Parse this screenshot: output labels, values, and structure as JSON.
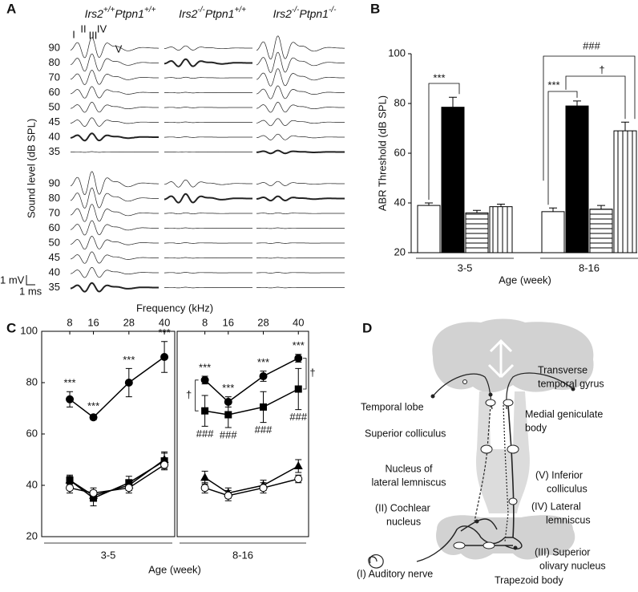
{
  "panel_labels": [
    "A",
    "B",
    "C",
    "D"
  ],
  "panel_a": {
    "headers": [
      [
        "Irs2",
        "+/+",
        "Ptpn1",
        "+/+"
      ],
      [
        "Irs2",
        "-/-",
        "Ptpn1",
        "+/+"
      ],
      [
        "Irs2",
        "-/-",
        "Ptpn1",
        "-/-"
      ]
    ],
    "y_label": "Sound level  (dB SPL)",
    "levels": [
      90,
      80,
      70,
      60,
      50,
      45,
      40,
      35
    ],
    "waves": [
      "I",
      "II",
      "III",
      "IV",
      "V"
    ],
    "scale_v": "1 mV",
    "scale_t": "1 ms"
  },
  "chart_data": [
    {
      "type": "bar",
      "ylabel": "ABR Threshold (dB SPL)",
      "xlabel": "Age (week)",
      "categories": [
        "3-5",
        "8-16"
      ],
      "series": [
        {
          "color": "#ffffff",
          "pattern": "none",
          "values": [
            39,
            36.5
          ],
          "errors": [
            1,
            1.5
          ]
        },
        {
          "color": "#000000",
          "pattern": "none",
          "values": [
            78.5,
            79
          ],
          "errors": [
            4,
            2
          ]
        },
        {
          "color": "#ffffff",
          "pattern": "horizontal",
          "values": [
            36,
            37.5
          ],
          "errors": [
            1,
            1.5
          ]
        },
        {
          "color": "#ffffff",
          "pattern": "vertical",
          "values": [
            38.5,
            69
          ],
          "errors": [
            1,
            3.5
          ]
        }
      ],
      "ylim": [
        20,
        100
      ],
      "yticks": [
        20,
        40,
        60,
        80,
        100
      ],
      "annotations": [
        "***",
        "***",
        "†",
        "###"
      ]
    },
    {
      "type": "line",
      "xlabel_top": "Frequency (kHz)",
      "xlabel": "Age (week)",
      "group": "3-5",
      "x": [
        8,
        16,
        28,
        40
      ],
      "xlim": [
        -1.5,
        43.5
      ],
      "xticks": [
        8,
        16,
        28,
        40
      ],
      "ylim": [
        20,
        100
      ],
      "yticks": [
        20,
        40,
        60,
        80,
        100
      ],
      "series": [
        {
          "marker": "circle-filled",
          "color": "#000000",
          "values": [
            73.5,
            66.5,
            80,
            90
          ],
          "errors": [
            3,
            1,
            5.5,
            6
          ]
        },
        {
          "marker": "square",
          "color": "#000000",
          "values": [
            42,
            35,
            41,
            49.5
          ],
          "errors": [
            2,
            3,
            2.5,
            3
          ]
        },
        {
          "marker": "triangle",
          "color": "#000000",
          "values": [
            42,
            36,
            40,
            50
          ],
          "errors": [
            1.5,
            2,
            2,
            3
          ]
        },
        {
          "marker": "circle-open",
          "color": "#000000",
          "values": [
            39,
            37,
            39,
            48
          ],
          "errors": [
            2,
            2,
            2,
            2
          ]
        }
      ],
      "annotations": [
        "***",
        "***",
        "***",
        "***"
      ]
    },
    {
      "type": "line",
      "group": "8-16",
      "x": [
        8,
        16,
        28,
        40
      ],
      "xlim": [
        -1.5,
        43.5
      ],
      "xticks": [
        8,
        16,
        28,
        40
      ],
      "ylim": [
        20,
        100
      ],
      "series": [
        {
          "marker": "circle-filled",
          "color": "#000000",
          "values": [
            81,
            72.5,
            82.5,
            89.5
          ],
          "errors": [
            1.5,
            2,
            2,
            1.5
          ]
        },
        {
          "marker": "square",
          "color": "#000000",
          "values": [
            69,
            67.5,
            70.5,
            77.5
          ],
          "errors": [
            6,
            5,
            6,
            8
          ]
        },
        {
          "marker": "triangle",
          "color": "#000000",
          "values": [
            43,
            37,
            40,
            47.5
          ],
          "errors": [
            2.5,
            2,
            2,
            2.5
          ]
        },
        {
          "marker": "circle-open",
          "color": "#000000",
          "values": [
            39,
            36,
            39,
            42.5
          ],
          "errors": [
            2,
            2,
            2,
            1.5
          ]
        }
      ],
      "annotations": [
        "***",
        "***",
        "***",
        "***",
        "###",
        "###",
        "###",
        "###",
        "†",
        "†"
      ]
    }
  ],
  "panel_d": {
    "labels": [
      [
        "Transverse",
        "temporal gyrus"
      ],
      [
        "Temporal lobe"
      ],
      [
        "Superior colliculus"
      ],
      [
        "Medial geniculate",
        "body"
      ],
      [
        "Nucleus of",
        "lateral lemniscus"
      ],
      [
        "(V) Inferior",
        "colliculus"
      ],
      [
        "(II) Cochlear",
        "nucleus"
      ],
      [
        "(IV) Lateral",
        "lemniscus"
      ],
      [
        "(III) Superior",
        "olivary nucleus"
      ],
      [
        "(I) Auditory nerve"
      ],
      [
        "Trapezoid body"
      ]
    ]
  }
}
